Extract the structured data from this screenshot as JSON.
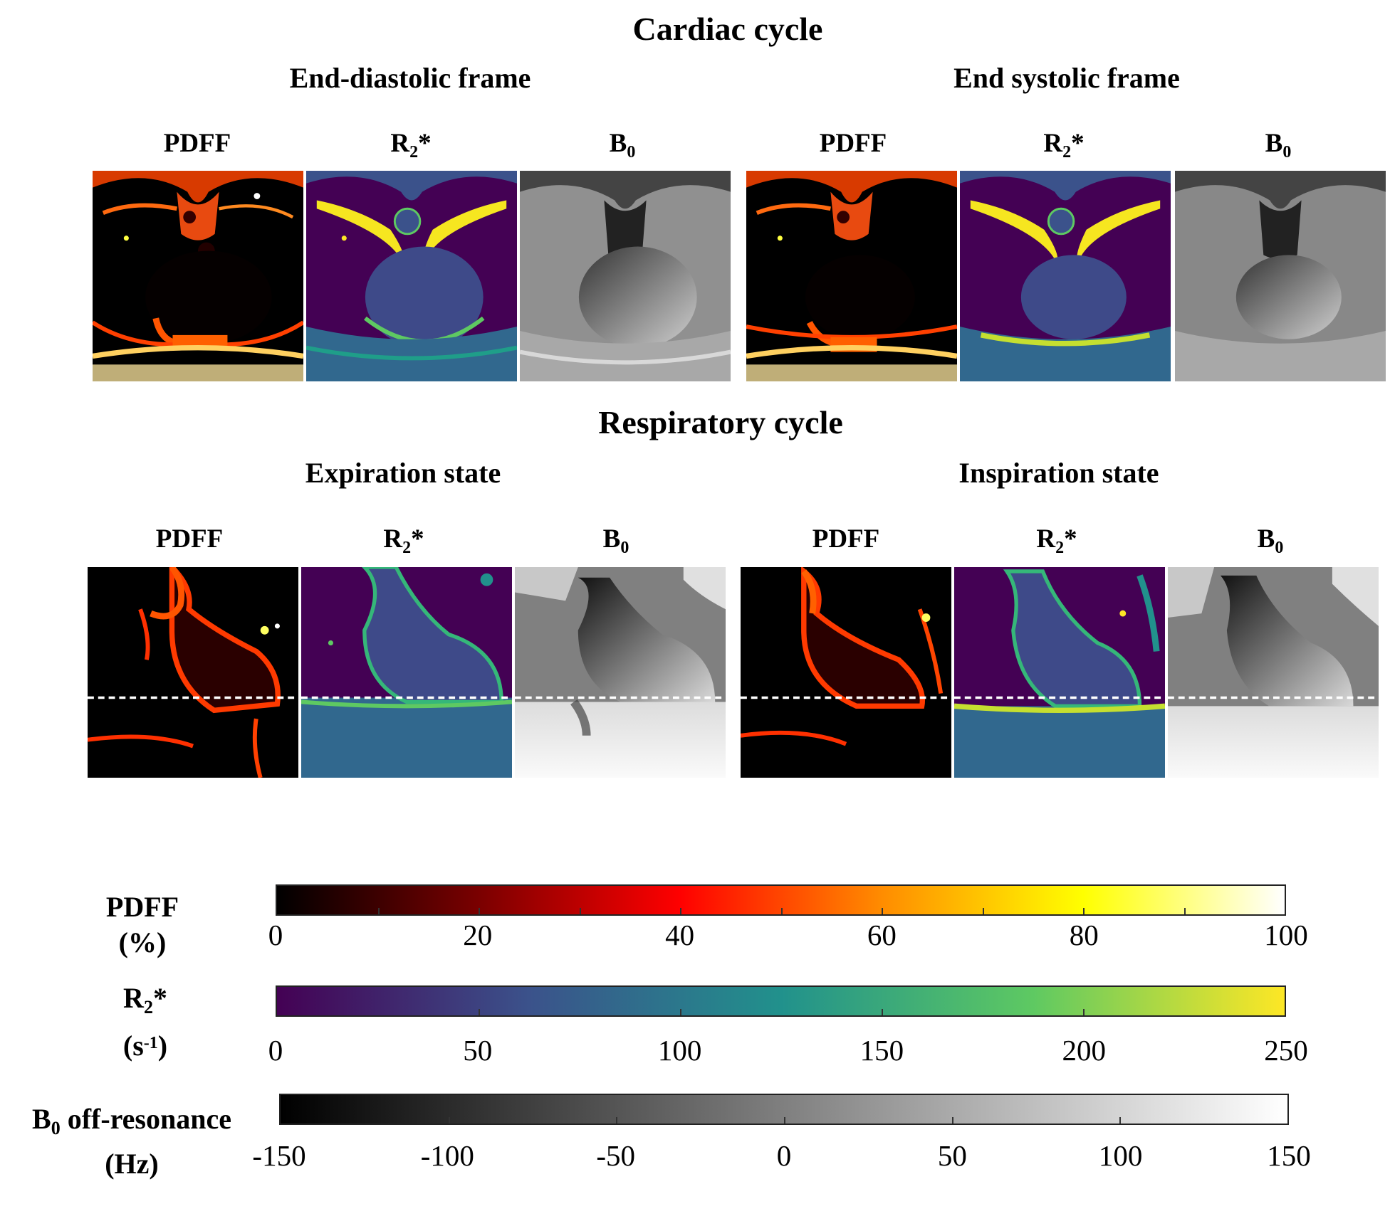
{
  "cardiac": {
    "title": "Cardiac cycle",
    "ed_title": "End-diastolic frame",
    "es_title": "End systolic frame"
  },
  "respiratory": {
    "title": "Respiratory cycle",
    "exp_title": "Expiration state",
    "insp_title": "Inspiration state"
  },
  "map_labels": {
    "pdff": "PDFF",
    "r2_base": "R",
    "r2_sub": "2",
    "r2_tail": "*",
    "b0_base": "B",
    "b0_sub": "0"
  },
  "colorbars": {
    "pdff": {
      "label_line1": "PDFF",
      "label_line2": "(%)",
      "colormap": "hot",
      "stops": [
        "#000000",
        "#7a0000",
        "#ff0000",
        "#ff8c00",
        "#ffff00",
        "#ffffff"
      ],
      "ticks": [
        "0",
        "20",
        "40",
        "60",
        "80",
        "100"
      ],
      "range": [
        0,
        100
      ]
    },
    "r2": {
      "label_base": "R",
      "label_sub": "2",
      "label_tail": "*",
      "unit_open": "(s",
      "unit_sup": "-1",
      "unit_close": ")",
      "colormap": "viridis",
      "stops": [
        "#440154",
        "#3b528b",
        "#21918c",
        "#5ec962",
        "#fde725"
      ],
      "ticks": [
        "0",
        "50",
        "100",
        "150",
        "200",
        "250"
      ],
      "range": [
        0,
        250
      ]
    },
    "b0": {
      "label_base": "B",
      "label_sub": "0",
      "label_tail": " off-resonance",
      "unit": "(Hz)",
      "colormap": "gray",
      "stops": [
        "#000000",
        "#ffffff"
      ],
      "ticks": [
        "-150",
        "-100",
        "-50",
        "0",
        "50",
        "100",
        "150"
      ],
      "range": [
        -150,
        150
      ]
    }
  }
}
